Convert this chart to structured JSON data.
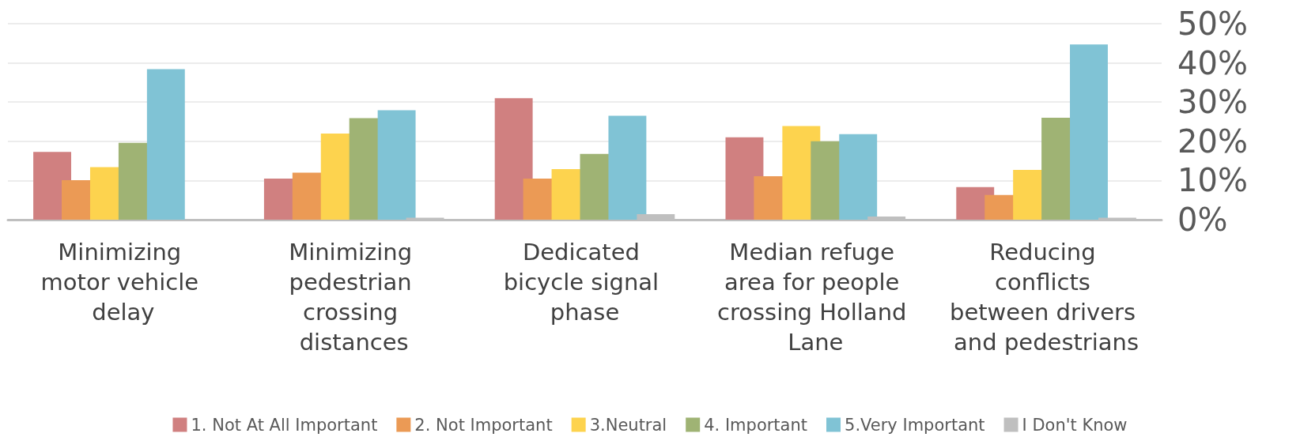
{
  "chart_data": {
    "type": "bar",
    "categories": [
      "Minimizing motor vehicle delay",
      "Minimizing pedestrian crossing distances",
      "Dedicated bicycle signal phase",
      "Median refuge area for people crossing Holland Lane",
      "Reducing conflicts between drivers and pedestrians"
    ],
    "series": [
      {
        "name": "1. Not At All Important",
        "color": "#d08080",
        "values": [
          17.3,
          10.5,
          31,
          21,
          8.3
        ]
      },
      {
        "name": "2. Not Important",
        "color": "#eb9a55",
        "values": [
          10.1,
          12,
          10.5,
          11.1,
          6.3
        ]
      },
      {
        "name": "3.Neutral",
        "color": "#fdd34e",
        "values": [
          13.4,
          22,
          12.9,
          23.9,
          12.7
        ]
      },
      {
        "name": "4. Important",
        "color": "#9fb374",
        "values": [
          19.6,
          25.9,
          16.8,
          20,
          26
        ]
      },
      {
        "name": "5.Very Important",
        "color": "#80c3d5",
        "values": [
          38.4,
          27.9,
          26.5,
          21.8,
          44.7
        ]
      },
      {
        "name": "I Don't Know",
        "color": "#bfbfbf",
        "values": [
          null,
          0.5,
          1.4,
          0.8,
          0.5
        ]
      }
    ],
    "ylim": [
      0,
      50
    ],
    "yticks": [
      {
        "value": 0,
        "label": "0%"
      },
      {
        "value": 10,
        "label": "10%"
      },
      {
        "value": 20,
        "label": "20%"
      },
      {
        "value": 30,
        "label": "30%"
      },
      {
        "value": 40,
        "label": "40%"
      },
      {
        "value": 50,
        "label": "50%"
      }
    ],
    "grid": "y",
    "legend": "bottom"
  }
}
